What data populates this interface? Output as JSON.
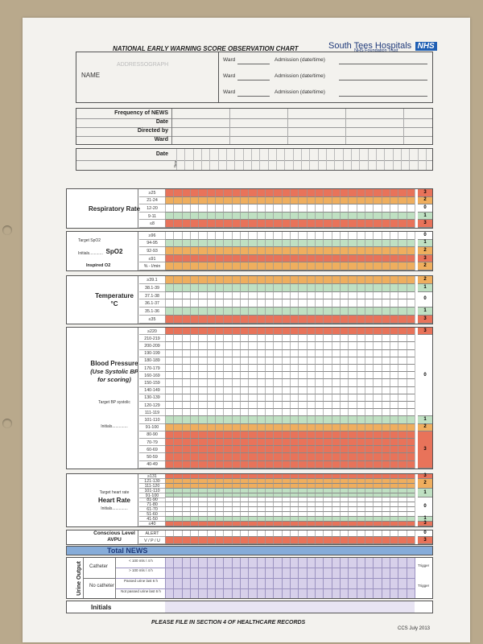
{
  "header": {
    "title": "NATIONAL EARLY WARNING SCORE OBSERVATION CHART",
    "org": "South Tees Hospitals",
    "nhs": "NHS",
    "trust": "NHS Foundation Trust"
  },
  "patient": {
    "addressograph": "ADDRESSOGRAPH",
    "name": "NAME",
    "ward_label": "Ward",
    "admission_label": "Admission (date/time)"
  },
  "info": [
    "Frequency of NEWS",
    "Date",
    "Directed by",
    "Ward"
  ],
  "date_label": "Date",
  "time_label": "Time",
  "colors": {
    "red": "#e8735a",
    "orange": "#efae5e",
    "yellow": "#f2e6a6",
    "green": "#bfe0c2",
    "white": "#ffffff",
    "blue": "#86acd9",
    "purple": "#d7d0ea"
  },
  "sections": [
    {
      "id": "respiratory",
      "label": "Respiratory Rate",
      "rows": [
        {
          "l": "≥25",
          "c": "red"
        },
        {
          "l": "21-24",
          "c": "orange"
        },
        {
          "l": "12-20",
          "c": "white"
        },
        {
          "l": "9-11",
          "c": "green"
        },
        {
          "l": "≤8",
          "c": "red"
        }
      ],
      "scores": [
        {
          "s": "3",
          "r": [
            0,
            1
          ],
          "c": "red"
        },
        {
          "s": "2",
          "r": [
            1,
            2
          ],
          "c": "orange"
        },
        {
          "s": "0",
          "r": [
            2,
            3
          ],
          "c": "white"
        },
        {
          "s": "1",
          "r": [
            3,
            4
          ],
          "c": "green"
        },
        {
          "s": "3",
          "r": [
            4,
            5
          ],
          "c": "red"
        }
      ]
    },
    {
      "id": "spo2",
      "label": "SpO2",
      "sub1": "Target SpO2",
      "sub2": "Initials............",
      "rows": [
        {
          "l": "≥96",
          "c": "white"
        },
        {
          "l": "94-95",
          "c": "green"
        },
        {
          "l": "92-93",
          "c": "orange"
        },
        {
          "l": "≤91",
          "c": "red"
        },
        {
          "l": "% - l/min",
          "c": "orange"
        }
      ],
      "extra": "Inspired O2",
      "scores": [
        {
          "s": "0",
          "r": [
            0,
            1
          ],
          "c": "white"
        },
        {
          "s": "1",
          "r": [
            1,
            2
          ],
          "c": "green"
        },
        {
          "s": "2",
          "r": [
            2,
            3
          ],
          "c": "orange"
        },
        {
          "s": "3",
          "r": [
            3,
            4
          ],
          "c": "red"
        },
        {
          "s": "2",
          "r": [
            4,
            5
          ],
          "c": "orange"
        }
      ]
    },
    {
      "id": "temperature",
      "label": "Temperature",
      "label2": "°C",
      "rows": [
        {
          "l": "≥39.1",
          "c": "orange"
        },
        {
          "l": "38.1-39",
          "c": "green"
        },
        {
          "l": "37.1-38",
          "c": "white"
        },
        {
          "l": "36.1-37",
          "c": "white"
        },
        {
          "l": "35.1-36",
          "c": "green"
        },
        {
          "l": "≤35",
          "c": "red"
        }
      ],
      "scores": [
        {
          "s": "2",
          "r": [
            0,
            1
          ],
          "c": "orange"
        },
        {
          "s": "1",
          "r": [
            1,
            2
          ],
          "c": "green"
        },
        {
          "s": "0",
          "r": [
            2,
            4
          ],
          "c": "white"
        },
        {
          "s": "1",
          "r": [
            4,
            5
          ],
          "c": "green"
        },
        {
          "s": "3",
          "r": [
            5,
            6
          ],
          "c": "red"
        }
      ]
    },
    {
      "id": "bp",
      "label": "Blood Pressure",
      "label2": "(Use Systolic BP",
      "label3": "for scoring)",
      "sub1": "Target BP systolic",
      "sub2": "Initials..............",
      "rows": [
        {
          "l": "≥220",
          "c": "red"
        },
        {
          "l": "210-219",
          "c": "white"
        },
        {
          "l": "200-209",
          "c": "white"
        },
        {
          "l": "190-199",
          "c": "white"
        },
        {
          "l": "180-189",
          "c": "white"
        },
        {
          "l": "170-179",
          "c": "white"
        },
        {
          "l": "160-169",
          "c": "white"
        },
        {
          "l": "150-159",
          "c": "white"
        },
        {
          "l": "140-149",
          "c": "white"
        },
        {
          "l": "130-139",
          "c": "white"
        },
        {
          "l": "120-129",
          "c": "white"
        },
        {
          "l": "111-119",
          "c": "white"
        },
        {
          "l": "101-110",
          "c": "green"
        },
        {
          "l": "91-100",
          "c": "orange"
        },
        {
          "l": "80-90",
          "c": "red"
        },
        {
          "l": "70-79",
          "c": "red"
        },
        {
          "l": "60-69",
          "c": "red"
        },
        {
          "l": "50-59",
          "c": "red"
        },
        {
          "l": "40-49",
          "c": "red"
        }
      ],
      "scores": [
        {
          "s": "3",
          "r": [
            0,
            1
          ],
          "c": "red"
        },
        {
          "s": "0",
          "r": [
            1,
            12
          ],
          "c": "white"
        },
        {
          "s": "1",
          "r": [
            12,
            13
          ],
          "c": "green"
        },
        {
          "s": "2",
          "r": [
            13,
            14
          ],
          "c": "orange"
        },
        {
          "s": "3",
          "r": [
            14,
            19
          ],
          "c": "red"
        }
      ]
    },
    {
      "id": "hr",
      "label": "Heart Rate",
      "sub1": "Target heart rate",
      "sub2": "Initials..............",
      "rows": [
        {
          "l": "≥131",
          "c": "red"
        },
        {
          "l": "121-130",
          "c": "orange"
        },
        {
          "l": "111-120",
          "c": "orange"
        },
        {
          "l": "101-110",
          "c": "green"
        },
        {
          "l": "91-100",
          "c": "green"
        },
        {
          "l": "81-90",
          "c": "white"
        },
        {
          "l": "71-80",
          "c": "white"
        },
        {
          "l": "61-70",
          "c": "white"
        },
        {
          "l": "51-60",
          "c": "white"
        },
        {
          "l": "41-50",
          "c": "green"
        },
        {
          "l": "≤40",
          "c": "red"
        }
      ],
      "scores": [
        {
          "s": "3",
          "r": [
            0,
            1
          ],
          "c": "red"
        },
        {
          "s": "2",
          "r": [
            1,
            3
          ],
          "c": "orange"
        },
        {
          "s": "1",
          "r": [
            3,
            5
          ],
          "c": "green"
        },
        {
          "s": "0",
          "r": [
            5,
            9
          ],
          "c": "white"
        },
        {
          "s": "1",
          "r": [
            9,
            10
          ],
          "c": "green"
        },
        {
          "s": "3",
          "r": [
            10,
            11
          ],
          "c": "red"
        }
      ]
    },
    {
      "id": "conscious",
      "label": "Conscious Level",
      "label2": "AVPU",
      "rows": [
        {
          "l": "ALERT",
          "c": "white"
        },
        {
          "l": "V / P / U",
          "c": "red"
        }
      ],
      "scores": [
        {
          "s": "0",
          "r": [
            0,
            1
          ],
          "c": "white"
        },
        {
          "s": "3",
          "r": [
            1,
            2
          ],
          "c": "red"
        }
      ]
    }
  ],
  "total": "Total NEWS",
  "urine": {
    "label": "Urine Output",
    "catheter": "Catheter",
    "no_catheter": "No catheter",
    "c1": "< 100 mls / 4 h",
    "c2": "> 100 mls / 4 h",
    "n1": "Passed urine last 6 h",
    "n2": "Not passed urine last 6 h",
    "trigger": "Trigger"
  },
  "initials": "Initials",
  "footer": "PLEASE FILE IN SECTION 4 OF HEALTHCARE RECORDS",
  "version": "CCS July 2013"
}
